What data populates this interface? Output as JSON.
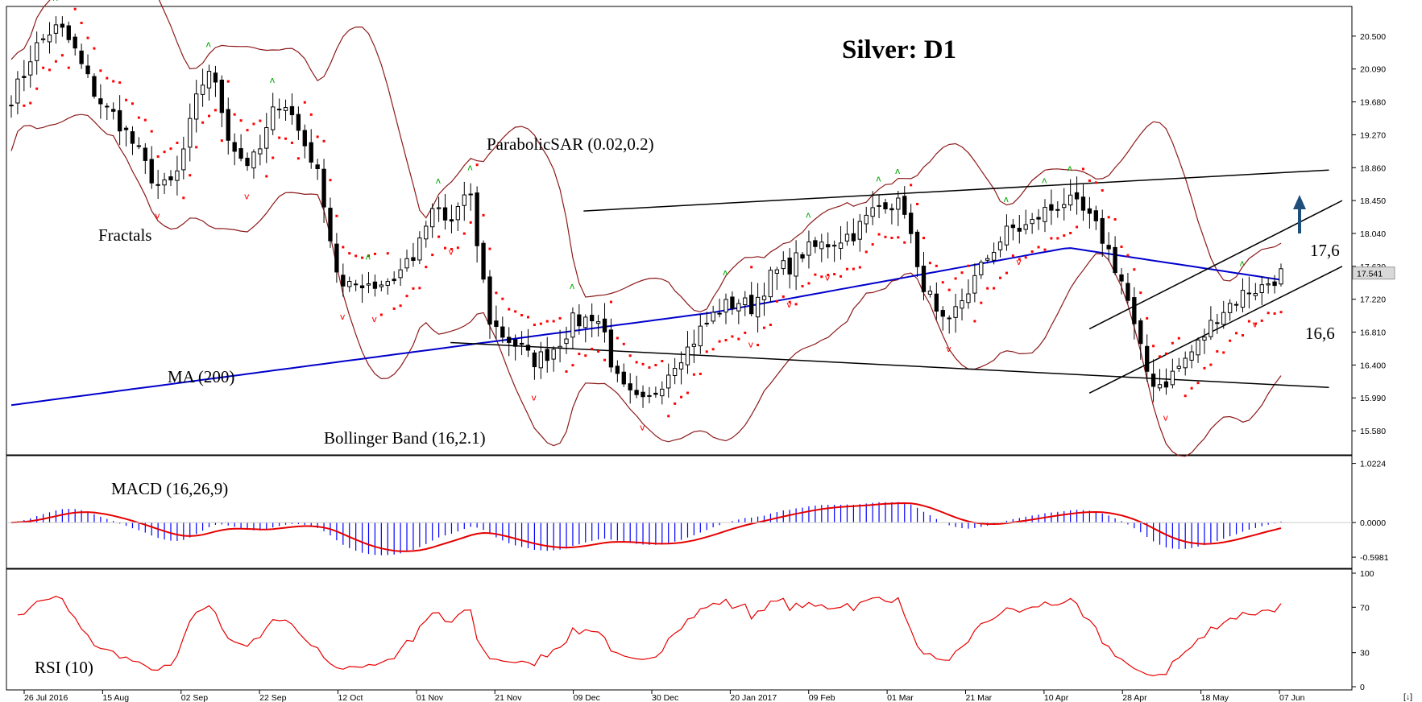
{
  "chart_data": {
    "type": "candlestick",
    "title": "Silver: D1",
    "annotations": {
      "fractals": "Fractals",
      "psar": "ParabolicSAR (0.02,0.2)",
      "ma": "MA (200)",
      "bollinger": "Bollinger Band (16,2.1)",
      "macd": "MACD (16,26,9)",
      "rsi": "RSI (10)",
      "resistance": "17,6",
      "support": "16,6"
    },
    "price_axis": {
      "ticks": [
        "20.500",
        "20.090",
        "19.680",
        "19.270",
        "18.860",
        "18.450",
        "18.040",
        "17.630",
        "17.220",
        "16.810",
        "16.400",
        "15.990",
        "15.580"
      ],
      "range": [
        15.3,
        20.85
      ],
      "current_price": "17.541"
    },
    "macd_axis": {
      "ticks": [
        "1.0224",
        "0.0000",
        "-0.5981"
      ],
      "range": [
        -0.75,
        1.1
      ]
    },
    "rsi_axis": {
      "ticks": [
        "100",
        "70",
        "30",
        "0"
      ],
      "range": [
        0,
        100
      ]
    },
    "x_labels": [
      "26 Jul 2016",
      "15 Aug",
      "02 Sep",
      "22 Sep",
      "12 Oct",
      "01 Nov",
      "21 Nov",
      "09 Dec",
      "30 Dec",
      "20 Jan 2017",
      "09 Feb",
      "01 Mar",
      "21 Mar",
      "10 Apr",
      "28 Apr",
      "18 May",
      "07 Jun"
    ],
    "close_series": [
      19.75,
      19.95,
      20.3,
      20.45,
      20.6,
      20.55,
      20.35,
      20.05,
      19.8,
      19.6,
      19.5,
      19.3,
      19.1,
      18.85,
      18.65,
      18.6,
      18.8,
      19.3,
      19.8,
      20.1,
      19.7,
      19.2,
      19.0,
      18.9,
      19.1,
      19.5,
      19.75,
      19.5,
      19.2,
      18.95,
      18.5,
      17.7,
      17.3,
      17.4,
      17.45,
      17.4,
      17.45,
      17.5,
      17.7,
      17.8,
      18.2,
      18.35,
      18.1,
      18.4,
      18.55,
      17.7,
      16.95,
      16.8,
      16.7,
      16.6,
      16.45,
      16.5,
      16.6,
      16.75,
      16.95,
      16.95,
      17.05,
      16.8,
      16.25,
      16.05,
      15.95,
      15.9,
      16.1,
      16.3,
      16.5,
      16.6,
      16.8,
      16.95,
      17.1,
      17.15,
      17.2,
      17.1,
      17.3,
      17.5,
      17.6,
      17.65,
      17.8,
      17.85,
      17.9,
      17.95,
      18.0,
      18.05,
      18.2,
      18.35,
      18.45,
      18.4,
      18.35,
      17.55,
      17.35,
      16.95,
      16.85,
      17.15,
      17.35,
      17.55,
      17.8,
      17.95,
      18.1,
      18.1,
      18.15,
      18.3,
      18.35,
      18.45,
      18.4,
      18.3,
      18.15,
      17.95,
      17.65,
      17.35,
      16.8,
      16.35,
      16.15,
      16.2,
      16.35,
      16.5,
      16.65,
      16.85,
      17.05,
      17.15,
      17.25,
      17.35,
      17.35,
      17.45,
      17.54
    ],
    "colors": {
      "candle": "#000000",
      "ma200": "#0000cc",
      "bollinger": "#8b1a1a",
      "psar": "#ff0000",
      "fractal_up": "#00aa00",
      "fractal_down": "#ff0000",
      "macd_hist": "#0000ff",
      "macd_signal": "#e60000",
      "rsi": "#e60000",
      "trend_arrow": "#1f4e79"
    }
  }
}
